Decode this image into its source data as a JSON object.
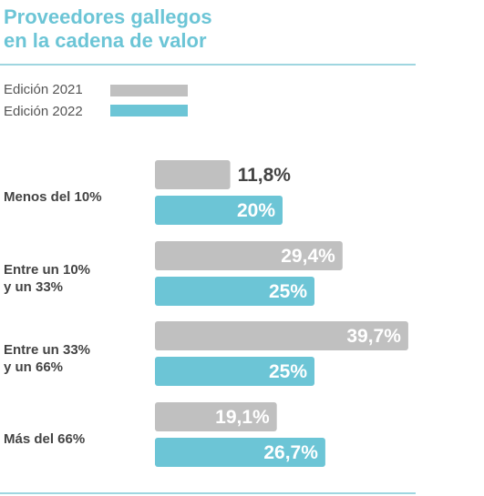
{
  "chart_data": {
    "type": "bar",
    "orientation": "horizontal",
    "title": "Proveedores gallegos\nen la cadena de valor",
    "categories": [
      "Menos del 10%",
      "Entre un 10%\ny un 33%",
      "Entre un 33%\ny un 66%",
      "Más del 66%"
    ],
    "series": [
      {
        "name": "Edición 2021",
        "values": [
          11.8,
          29.4,
          39.7,
          19.1
        ],
        "labels": [
          "11,8%",
          "29,4%",
          "39,7%",
          "19,1%"
        ]
      },
      {
        "name": "Edición 2022",
        "values": [
          20,
          25,
          25,
          26.7
        ],
        "labels": [
          "20%",
          "25%",
          "25%",
          "26,7%"
        ]
      }
    ],
    "legend_position": "top-left",
    "grid": false
  },
  "colors": {
    "title": "#6cc5d6",
    "series_2021": "#c0c0c0",
    "series_2022": "#6cc5d6",
    "outside_label": "#444444",
    "inside_label": "#ffffff",
    "rule": "#9fd6e0",
    "text": "#555555"
  }
}
